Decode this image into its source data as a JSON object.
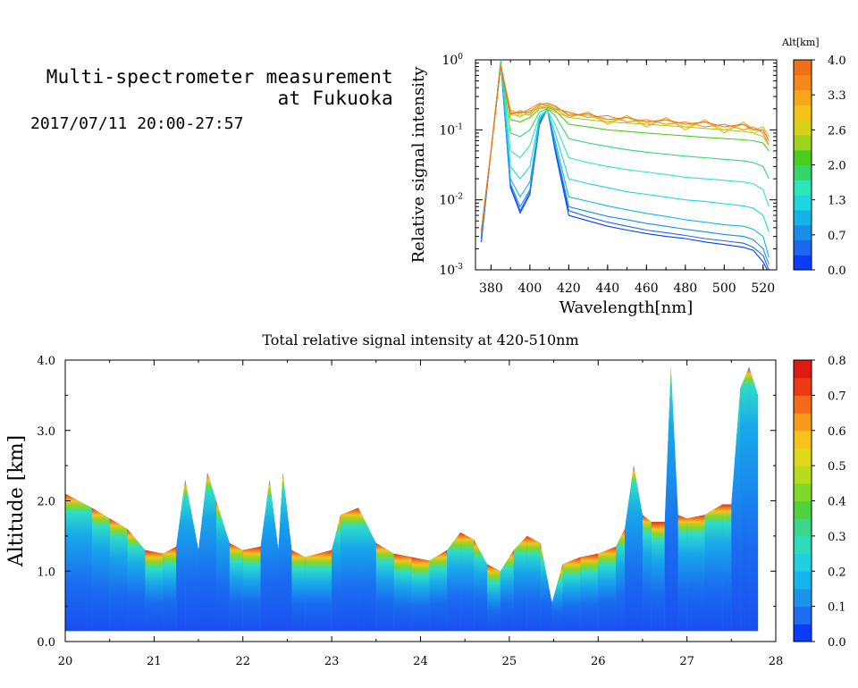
{
  "header": {
    "title_line1": "Multi-spectrometer measurement",
    "title_line2": "at Fukuoka",
    "subtitle": "2017/07/11 20:00-27:57"
  },
  "colors": {
    "altitude_palette": [
      "#0a3cff",
      "#1f66ee",
      "#168fe6",
      "#16b3e9",
      "#1ed6de",
      "#2ee6b8",
      "#33d66b",
      "#4dcc20",
      "#9bd51c",
      "#d9d019",
      "#f5c21a",
      "#f7a81a",
      "#f58a1a",
      "#f0701a"
    ],
    "intensity_palette": [
      "#0a3cff",
      "#1d6df0",
      "#1a94ea",
      "#18b2ec",
      "#1ed0e0",
      "#2edcbc",
      "#3bd68a",
      "#4ed23e",
      "#7fd82a",
      "#b6dc1c",
      "#e2d81a",
      "#f8c21a",
      "#f89a1a",
      "#f56a18",
      "#ee3a14",
      "#e01a10"
    ]
  },
  "chart_data": [
    {
      "type": "line",
      "title": "",
      "xlabel": "Wavelength[nm]",
      "ylabel": "Relative signal intensity",
      "xlim": [
        372,
        527
      ],
      "ylim": [
        0.001,
        1
      ],
      "yscale": "log",
      "x_ticks": [
        380,
        400,
        420,
        440,
        460,
        480,
        500,
        520
      ],
      "y_tick_labels": [
        {
          "base": "10",
          "exp": "0",
          "value": 1
        },
        {
          "base": "10",
          "exp": "-1",
          "value": 0.1
        },
        {
          "base": "10",
          "exp": "-2",
          "value": 0.01
        },
        {
          "base": "10",
          "exp": "-3",
          "value": 0.001
        }
      ],
      "colorbar": {
        "label": "Alt[km]",
        "range": [
          0,
          4
        ],
        "tick_labels": [
          "4.0",
          "3.3",
          "2.6",
          "2.0",
          "1.3",
          "0.7",
          "0.0"
        ]
      },
      "x": [
        375,
        380,
        385,
        390,
        395,
        400,
        405,
        409,
        413,
        420,
        430,
        440,
        450,
        460,
        470,
        480,
        490,
        500,
        510,
        515,
        520,
        523
      ],
      "series": [
        {
          "alt": 0.15,
          "values": [
            0.0025,
            0.05,
            0.9,
            0.015,
            0.0065,
            0.012,
            0.12,
            0.2,
            0.05,
            0.006,
            0.005,
            0.0042,
            0.0037,
            0.0033,
            0.003,
            0.0028,
            0.0025,
            0.0023,
            0.0021,
            0.0019,
            0.0013,
            0.0009
          ]
        },
        {
          "alt": 0.45,
          "values": [
            0.0028,
            0.05,
            0.92,
            0.016,
            0.007,
            0.013,
            0.125,
            0.2,
            0.055,
            0.007,
            0.0057,
            0.0048,
            0.0042,
            0.0037,
            0.0034,
            0.0031,
            0.0028,
            0.0026,
            0.0024,
            0.0021,
            0.0016,
            0.001
          ]
        },
        {
          "alt": 0.75,
          "values": [
            0.003,
            0.05,
            0.95,
            0.017,
            0.008,
            0.014,
            0.13,
            0.2,
            0.06,
            0.008,
            0.0068,
            0.0058,
            0.0052,
            0.0046,
            0.0042,
            0.0038,
            0.0035,
            0.0032,
            0.003,
            0.0027,
            0.002,
            0.0012
          ]
        },
        {
          "alt": 1.05,
          "values": [
            0.0033,
            0.05,
            0.97,
            0.02,
            0.011,
            0.018,
            0.14,
            0.2,
            0.07,
            0.011,
            0.0095,
            0.0082,
            0.0072,
            0.0064,
            0.0058,
            0.0052,
            0.0048,
            0.0044,
            0.0042,
            0.0038,
            0.003,
            0.0015
          ]
        },
        {
          "alt": 1.35,
          "values": [
            0.0035,
            0.05,
            0.95,
            0.03,
            0.02,
            0.03,
            0.15,
            0.19,
            0.09,
            0.02,
            0.017,
            0.015,
            0.013,
            0.012,
            0.011,
            0.01,
            0.0095,
            0.0088,
            0.0082,
            0.0076,
            0.006,
            0.0035
          ]
        },
        {
          "alt": 1.65,
          "values": [
            0.0035,
            0.05,
            0.92,
            0.05,
            0.04,
            0.06,
            0.16,
            0.19,
            0.12,
            0.04,
            0.034,
            0.03,
            0.027,
            0.025,
            0.023,
            0.021,
            0.02,
            0.019,
            0.018,
            0.017,
            0.014,
            0.008
          ]
        },
        {
          "alt": 1.95,
          "values": [
            0.0035,
            0.05,
            0.9,
            0.09,
            0.08,
            0.1,
            0.18,
            0.2,
            0.16,
            0.075,
            0.065,
            0.058,
            0.052,
            0.048,
            0.045,
            0.042,
            0.04,
            0.038,
            0.036,
            0.034,
            0.03,
            0.02
          ]
        },
        {
          "alt": 2.25,
          "values": [
            0.0035,
            0.05,
            0.88,
            0.14,
            0.13,
            0.15,
            0.2,
            0.21,
            0.19,
            0.12,
            0.11,
            0.1,
            0.095,
            0.09,
            0.086,
            0.082,
            0.078,
            0.075,
            0.072,
            0.07,
            0.065,
            0.05
          ]
        },
        {
          "alt": 2.55,
          "values": [
            0.0035,
            0.05,
            0.86,
            0.17,
            0.16,
            0.17,
            0.21,
            0.22,
            0.2,
            0.15,
            0.14,
            0.13,
            0.125,
            0.12,
            0.115,
            0.11,
            0.105,
            0.1,
            0.095,
            0.09,
            0.08,
            0.06
          ]
        },
        {
          "alt": 2.85,
          "values": [
            0.0035,
            0.05,
            0.85,
            0.18,
            0.15,
            0.19,
            0.2,
            0.23,
            0.21,
            0.17,
            0.16,
            0.13,
            0.15,
            0.12,
            0.14,
            0.11,
            0.13,
            0.1,
            0.12,
            0.09,
            0.1,
            0.07
          ]
        },
        {
          "alt": 3.15,
          "values": [
            0.0035,
            0.05,
            0.84,
            0.16,
            0.19,
            0.16,
            0.22,
            0.2,
            0.18,
            0.15,
            0.18,
            0.12,
            0.16,
            0.11,
            0.15,
            0.1,
            0.14,
            0.09,
            0.13,
            0.1,
            0.11,
            0.08
          ]
        },
        {
          "alt": 3.45,
          "values": [
            0.0035,
            0.05,
            0.83,
            0.19,
            0.17,
            0.2,
            0.24,
            0.22,
            0.2,
            0.18,
            0.15,
            0.16,
            0.13,
            0.14,
            0.12,
            0.13,
            0.11,
            0.12,
            0.1,
            0.11,
            0.09,
            0.06
          ]
        },
        {
          "alt": 3.75,
          "values": [
            0.0035,
            0.05,
            0.82,
            0.17,
            0.18,
            0.18,
            0.23,
            0.24,
            0.22,
            0.16,
            0.17,
            0.14,
            0.15,
            0.13,
            0.14,
            0.12,
            0.13,
            0.11,
            0.12,
            0.1,
            0.1,
            0.07
          ]
        }
      ]
    },
    {
      "type": "heatmap",
      "title": "Total relative signal intensity at 420-510nm",
      "xlabel": "",
      "ylabel": "Altitude [km]",
      "xlim": [
        20,
        28
      ],
      "ylim": [
        0,
        4
      ],
      "x_tick_labels": [
        "20",
        "21",
        "22",
        "23",
        "24",
        "25",
        "26",
        "27",
        "28"
      ],
      "y_tick_labels": [
        "0.0",
        "1.0",
        "2.0",
        "3.0",
        "4.0"
      ],
      "colorbar": {
        "range": [
          0,
          0.8
        ],
        "tick_labels": [
          "0.8",
          "0.7",
          "0.6",
          "0.5",
          "0.4",
          "0.3",
          "0.2",
          "0.1",
          "0.0"
        ]
      },
      "data_x_range": [
        20.0,
        27.8
      ],
      "data_bottom_altitude": 0.15,
      "boundary_layer_top": {
        "time": [
          20.0,
          20.3,
          20.5,
          20.7,
          20.9,
          21.1,
          21.25,
          21.35,
          21.5,
          21.6,
          21.7,
          21.85,
          22.0,
          22.2,
          22.3,
          22.4,
          22.45,
          22.55,
          22.7,
          23.0,
          23.1,
          23.3,
          23.5,
          23.7,
          23.9,
          24.1,
          24.3,
          24.45,
          24.6,
          24.75,
          24.9,
          25.05,
          25.2,
          25.35,
          25.48,
          25.6,
          25.8,
          26.0,
          26.2,
          26.3,
          26.4,
          26.5,
          26.6,
          26.75,
          26.82,
          26.9,
          27.0,
          27.2,
          27.4,
          27.5,
          27.6,
          27.7,
          27.8
        ],
        "altitude": [
          2.1,
          1.9,
          1.75,
          1.6,
          1.3,
          1.25,
          1.35,
          2.3,
          1.3,
          2.4,
          2.0,
          1.4,
          1.3,
          1.35,
          2.3,
          1.3,
          2.4,
          1.3,
          1.2,
          1.3,
          1.8,
          1.9,
          1.4,
          1.25,
          1.2,
          1.15,
          1.3,
          1.55,
          1.45,
          1.1,
          1.0,
          1.3,
          1.5,
          1.4,
          0.55,
          1.1,
          1.2,
          1.25,
          1.35,
          1.6,
          2.5,
          1.8,
          1.7,
          1.7,
          3.9,
          1.8,
          1.75,
          1.8,
          1.95,
          1.95,
          3.6,
          3.9,
          3.5
        ]
      }
    }
  ]
}
